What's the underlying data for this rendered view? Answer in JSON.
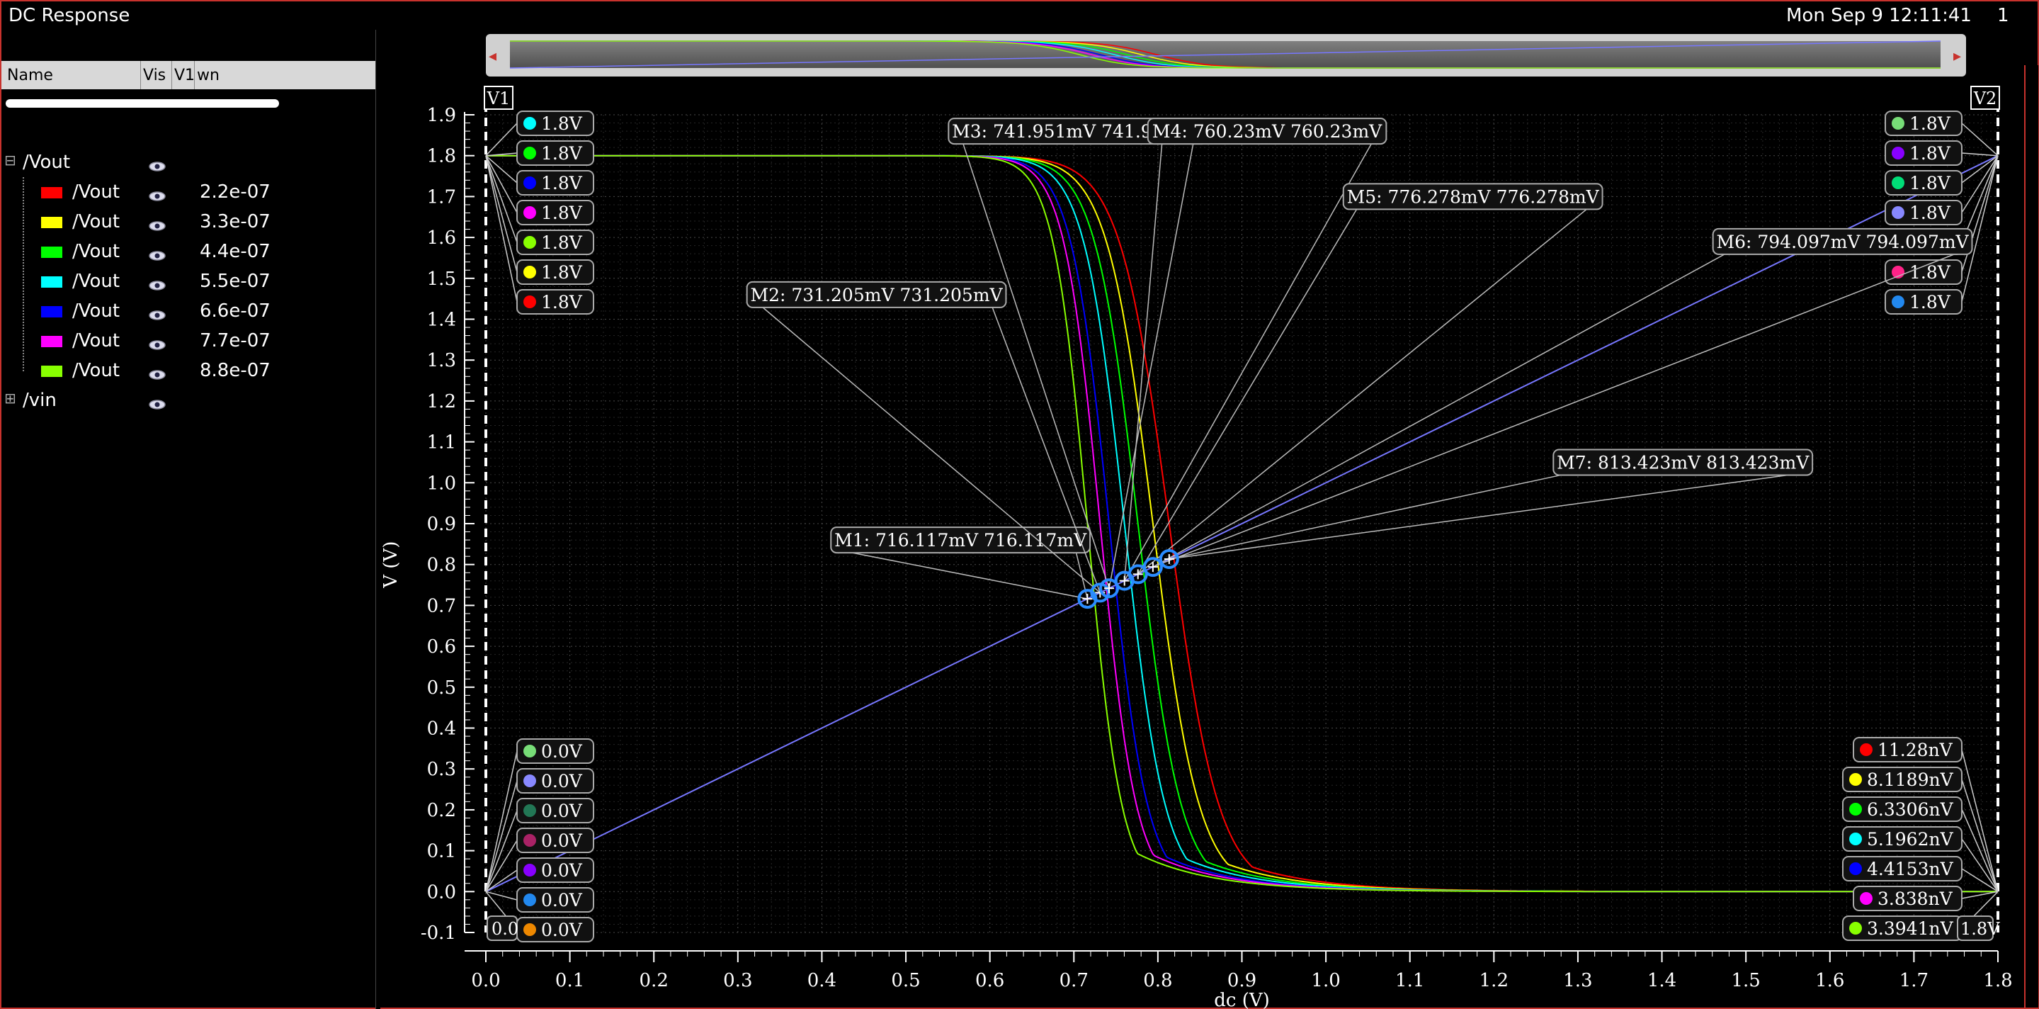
{
  "window": {
    "title": "DC Response",
    "datetime": "Mon Sep 9 12:11:41",
    "page_num": "1"
  },
  "legend_panel": {
    "columns": {
      "name": "Name",
      "vis": "Vis",
      "v1": "V1",
      "wn": "wn"
    },
    "groups": [
      {
        "name": "/Vout",
        "expanded": true,
        "items": [
          {
            "name": "/Vout",
            "wn": "2.2e-07",
            "color": "#ff0000"
          },
          {
            "name": "/Vout",
            "wn": "3.3e-07",
            "color": "#ffff00"
          },
          {
            "name": "/Vout",
            "wn": "4.4e-07",
            "color": "#00ff00"
          },
          {
            "name": "/Vout",
            "wn": "5.5e-07",
            "color": "#00ffff"
          },
          {
            "name": "/Vout",
            "wn": "6.6e-07",
            "color": "#0000ff"
          },
          {
            "name": "/Vout",
            "wn": "7.7e-07",
            "color": "#ff00ff"
          },
          {
            "name": "/Vout",
            "wn": "8.8e-07",
            "color": "#88ff00"
          }
        ]
      },
      {
        "name": "/vin",
        "expanded": false,
        "items": []
      }
    ]
  },
  "cursors": {
    "v1": "V1",
    "v2": "V2"
  },
  "cursor_labels": {
    "v1_top": [
      {
        "text": "1.8V",
        "color": "#00ffff"
      },
      {
        "text": "1.8V",
        "color": "#00ff00"
      },
      {
        "text": "1.8V",
        "color": "#0000ff"
      },
      {
        "text": "1.8V",
        "color": "#ff00ff"
      },
      {
        "text": "1.8V",
        "color": "#88ff00"
      },
      {
        "text": "1.8V",
        "color": "#ffff00"
      },
      {
        "text": "1.8V",
        "color": "#ff0000"
      }
    ],
    "v1_bottom": [
      {
        "text": "0.0V",
        "color": "#77dd77"
      },
      {
        "text": "0.0V",
        "color": "#8888ff"
      },
      {
        "text": "0.0V",
        "color": "#227755"
      },
      {
        "text": "0.0V",
        "color": "#aa2266"
      },
      {
        "text": "0.0V",
        "color": "#8800ff"
      },
      {
        "text": "0.0V",
        "color": "#2288ee"
      },
      {
        "text": "0.0V",
        "color": "#ee8800"
      }
    ],
    "v1_x": "0.0",
    "v2_top": [
      {
        "text": "1.8V",
        "color": "#77dd77"
      },
      {
        "text": "1.8V",
        "color": "#8800ff"
      },
      {
        "text": "1.8V",
        "color": "#00dd77"
      },
      {
        "text": "1.8V",
        "color": "#8888ff"
      },
      {
        "text": "1.8V",
        "color": "#ee8800"
      },
      {
        "text": "1.8V",
        "color": "#ff2288"
      },
      {
        "text": "1.8V",
        "color": "#2288ee"
      }
    ],
    "v2_bottom": [
      {
        "text": "11.28nV",
        "color": "#ff0000"
      },
      {
        "text": "8.1189nV",
        "color": "#ffff00"
      },
      {
        "text": "6.3306nV",
        "color": "#00ff00"
      },
      {
        "text": "5.1962nV",
        "color": "#00ffff"
      },
      {
        "text": "4.4153nV",
        "color": "#0000ff"
      },
      {
        "text": "3.838nV",
        "color": "#ff00ff"
      },
      {
        "text": "3.3941nV",
        "color": "#88ff00"
      }
    ],
    "v2_x": "1.8V"
  },
  "markers": [
    {
      "name": "M1",
      "x": 0.716117,
      "y": 0.716117,
      "text": "M1: 716.117mV 716.117mV",
      "lx": 0.565,
      "ly": 0.86
    },
    {
      "name": "M2",
      "x": 0.731205,
      "y": 0.731205,
      "text": "M2: 731.205mV 731.205mV",
      "lx": 0.465,
      "ly": 1.46
    },
    {
      "name": "M3",
      "x": 0.741951,
      "y": 0.741951,
      "text": "M3: 741.951mV 741.951mV",
      "lx": 0.705,
      "ly": 1.86
    },
    {
      "name": "M4",
      "x": 0.76023,
      "y": 0.76023,
      "text": "M4: 760.23mV 760.23mV",
      "lx": 0.93,
      "ly": 1.86
    },
    {
      "name": "M5",
      "x": 0.776278,
      "y": 0.776278,
      "text": "M5: 776.278mV 776.278mV",
      "lx": 1.175,
      "ly": 1.7
    },
    {
      "name": "M6",
      "x": 0.794097,
      "y": 0.794097,
      "text": "M6: 794.097mV 794.097mV",
      "lx": 1.615,
      "ly": 1.59
    },
    {
      "name": "M7",
      "x": 0.813423,
      "y": 0.813423,
      "text": "M7: 813.423mV 813.423mV",
      "lx": 1.425,
      "ly": 1.05
    }
  ],
  "chart_data": {
    "type": "line",
    "xlabel": "dc (V)",
    "ylabel": "V (V)",
    "xlim": [
      0.0,
      1.8
    ],
    "ylim": [
      -0.1,
      1.9
    ],
    "x_ticks": [
      "0.0",
      "0.1",
      "0.2",
      "0.3",
      "0.4",
      "0.5",
      "0.6",
      "0.7",
      "0.8",
      "0.9",
      "1.0",
      "1.1",
      "1.2",
      "1.3",
      "1.4",
      "1.5",
      "1.6",
      "1.7",
      "1.8"
    ],
    "y_ticks": [
      "1.9",
      "1.8",
      "1.7",
      "1.6",
      "1.5",
      "1.4",
      "1.3",
      "1.2",
      "1.1",
      "1.0",
      "0.9",
      "0.8",
      "0.7",
      "0.6",
      "0.5",
      "0.4",
      "0.3",
      "0.2",
      "0.1",
      "0.0",
      "-0.1"
    ],
    "grid": true,
    "series": [
      {
        "name": "/Vout wn=2.2e-07",
        "color": "#ff0000",
        "vm": 0.813423
      },
      {
        "name": "/Vout wn=3.3e-07",
        "color": "#ffff00",
        "vm": 0.794097
      },
      {
        "name": "/Vout wn=4.4e-07",
        "color": "#00ff00",
        "vm": 0.776278
      },
      {
        "name": "/Vout wn=5.5e-07",
        "color": "#00ffff",
        "vm": 0.76023
      },
      {
        "name": "/Vout wn=6.6e-07",
        "color": "#0000ff",
        "vm": 0.741951
      },
      {
        "name": "/Vout wn=7.7e-07",
        "color": "#ff00ff",
        "vm": 0.731205
      },
      {
        "name": "/Vout wn=8.8e-07",
        "color": "#88ff00",
        "vm": 0.716117
      },
      {
        "name": "/vin",
        "color": "#7777ff",
        "x": [
          0.0,
          1.8
        ],
        "y": [
          0.0,
          1.8
        ]
      }
    ]
  }
}
